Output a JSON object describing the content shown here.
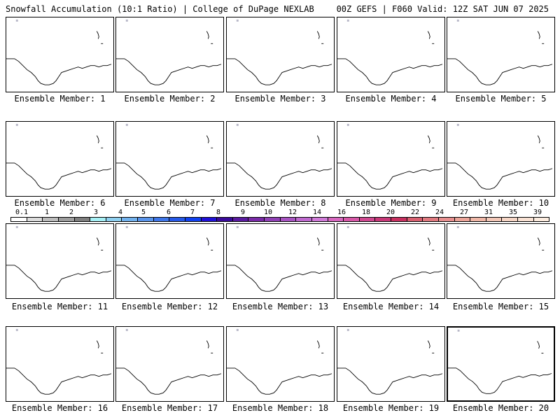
{
  "header": {
    "title_left": "Snowfall Accumulation (10:1 Ratio) | College of DuPage NEXLAB",
    "title_right": "00Z GEFS | F060 Valid: 12Z SAT JUN 07 2025"
  },
  "panels": [
    {
      "label": "Ensemble Member: 1"
    },
    {
      "label": "Ensemble Member: 2"
    },
    {
      "label": "Ensemble Member: 3"
    },
    {
      "label": "Ensemble Member: 4"
    },
    {
      "label": "Ensemble Member: 5"
    },
    {
      "label": "Ensemble Member: 6"
    },
    {
      "label": "Ensemble Member: 7"
    },
    {
      "label": "Ensemble Member: 8"
    },
    {
      "label": "Ensemble Member: 9"
    },
    {
      "label": "Ensemble Member: 10"
    },
    {
      "label": "Ensemble Member: 11"
    },
    {
      "label": "Ensemble Member: 12"
    },
    {
      "label": "Ensemble Member: 13"
    },
    {
      "label": "Ensemble Member: 14"
    },
    {
      "label": "Ensemble Member: 15"
    },
    {
      "label": "Ensemble Member: 16"
    },
    {
      "label": "Ensemble Member: 17"
    },
    {
      "label": "Ensemble Member: 18"
    },
    {
      "label": "Ensemble Member: 19"
    },
    {
      "label": "Ensemble Member: 20",
      "selected": true
    }
  ],
  "colorbar": {
    "labels": [
      "0.1",
      "1",
      "2",
      "3",
      "4",
      "5",
      "6",
      "7",
      "8",
      "9",
      "10",
      "12",
      "14",
      "16",
      "18",
      "20",
      "22",
      "24",
      "27",
      "31",
      "35",
      "39"
    ],
    "colors": [
      "#ffffff",
      "#dcdcdc",
      "#bdbdbd",
      "#9e9e9e",
      "#7f7f7f",
      "#a6f0f5",
      "#8fd0f0",
      "#72b2ee",
      "#5a95ec",
      "#3f77ea",
      "#2659e8",
      "#1040f0",
      "#1f10d8",
      "#3a0a9a",
      "#5a1aa0",
      "#7a2aa8",
      "#9040b5",
      "#a854c2",
      "#c06ad0",
      "#d07ad8",
      "#d868c0",
      "#d858a8",
      "#d04890",
      "#c83878",
      "#c83060",
      "#d86070",
      "#e07a80",
      "#e89090",
      "#eca59a",
      "#f0b8a8",
      "#f3c8b8",
      "#f6d6c6",
      "#f9e2d4",
      "#fcecdf"
    ]
  }
}
